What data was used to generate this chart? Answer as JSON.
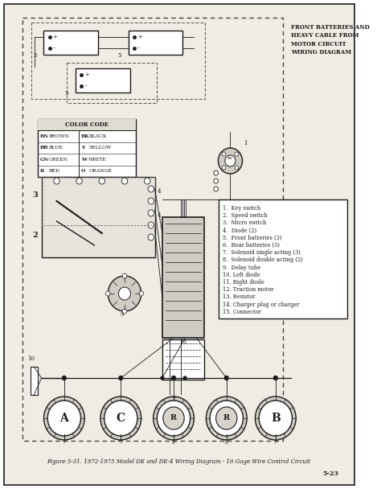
{
  "title": "Figure 5-31. 1972-1975 Model DE and DE-4 Wiring Diagram - 16 Gage Wire Control Circuit",
  "page_number": "5-23",
  "bg_color": "#e8e4dc",
  "white": "#ffffff",
  "black": "#1a1a1a",
  "gray_light": "#d0ccc4",
  "gray_med": "#aaa8a0",
  "header_note": "FRONT BATTERIES AND\nHEAVY CABLE FROM\nMOTOR CIRCUIT\nWIRING DIAGRAM",
  "color_code_title": "COLOR CODE",
  "color_code_entries": [
    [
      "BN",
      "BROWN",
      "BK",
      "BLACK"
    ],
    [
      "BB",
      "BLUE",
      "Y",
      "YELLOW"
    ],
    [
      "GN",
      "GREEN",
      "W",
      "WHITE"
    ],
    [
      "R",
      "RED",
      "O",
      "ORANGE"
    ]
  ],
  "legend_items": [
    "1.  Key switch",
    "2.  Speed switch",
    "3.  Micro switch",
    "4.  Diode (2)",
    "5.  Front batteries (3)",
    "6.  Rear batteries (3)",
    "7.  Solenoid single acting (3)",
    "8.  Solenoid double acting (2)",
    "9.  Delay tube",
    "10. Left diode",
    "11. Right diode",
    "12. Traction motor",
    "13. Resistor",
    "14. Charger plug or charger",
    "15. Connector"
  ],
  "figsize": [
    4.74,
    6.08
  ],
  "dpi": 100
}
